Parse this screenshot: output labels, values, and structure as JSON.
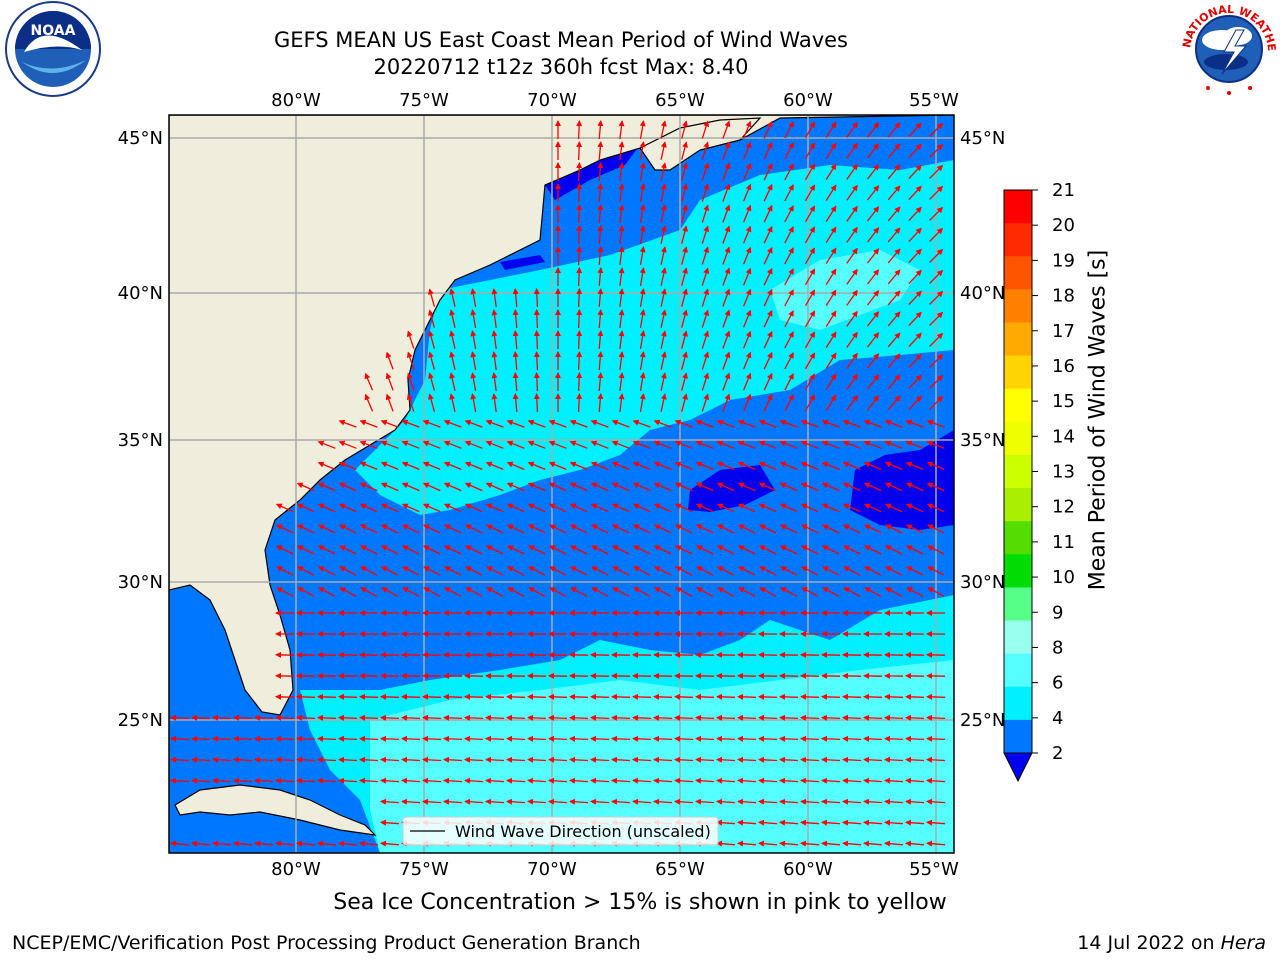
{
  "title": {
    "line1": "GEFS MEAN US East Coast Mean Period of Wind Waves",
    "line2": "20220712 t12z 360h fcst   Max: 8.40"
  },
  "map": {
    "lon_ticks": [
      "80°W",
      "75°W",
      "70°W",
      "65°W",
      "60°W",
      "55°W"
    ],
    "lat_ticks": [
      "45°N",
      "40°N",
      "35°N",
      "30°N",
      "25°N"
    ],
    "legend_text": "Wind Wave Direction (unscaled)",
    "arrow_color": "#ff0000",
    "land_color": "#efeedd"
  },
  "colorbar": {
    "label": "Mean Period of Wind Waves [s]",
    "ticks": [
      "21",
      "20",
      "19",
      "18",
      "17",
      "16",
      "15",
      "14",
      "13",
      "12",
      "11",
      "10",
      "9",
      "8",
      "6",
      "4",
      "2"
    ],
    "colors_top_to_bottom": [
      "#ff0000",
      "#ff2a00",
      "#ff5500",
      "#ff7f00",
      "#ffaa00",
      "#ffd400",
      "#ffff00",
      "#eeff00",
      "#ccff00",
      "#aaee00",
      "#55dd00",
      "#00dd00",
      "#55ff88",
      "#99ffee",
      "#55ffff",
      "#00f0ff",
      "#0077ff"
    ],
    "extend_color": "#0000ee"
  },
  "note": "Sea Ice Concentration > 15% is shown in pink to yellow",
  "footer": {
    "left": "NCEP/EMC/Verification Post Processing Product Generation Branch",
    "date": "14 Jul 2022 on ",
    "machine": "Hera"
  },
  "logos": {
    "noaa_text": "NOAA",
    "nws_text": "NATIONAL WEATHER SERVICE"
  }
}
